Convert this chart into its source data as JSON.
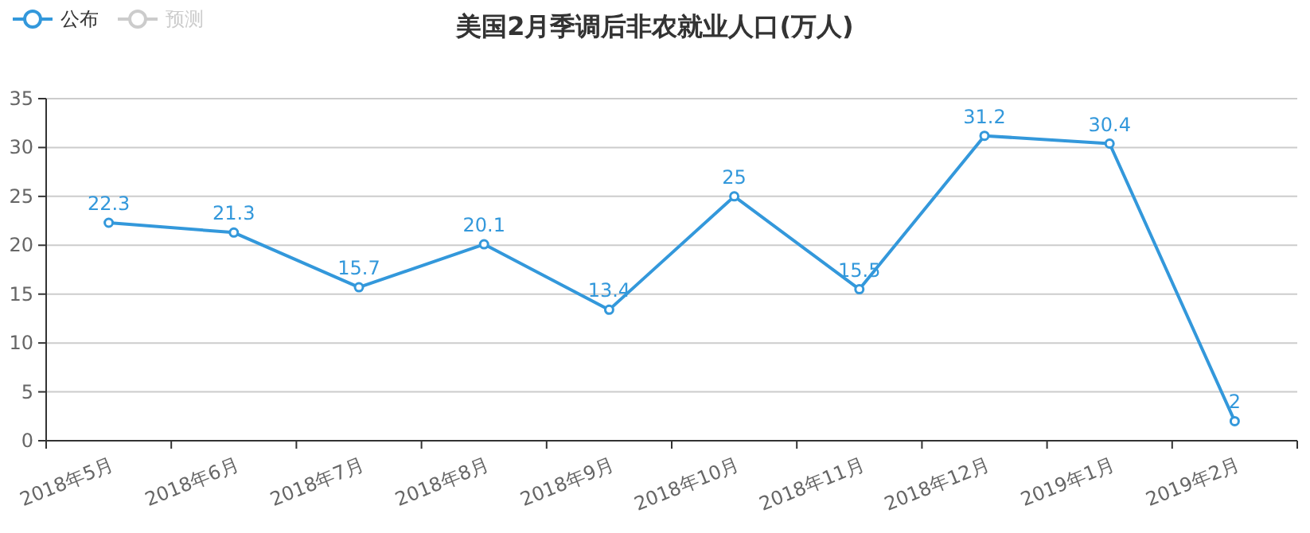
{
  "chart_data": {
    "type": "line",
    "title": "美国2月季调后非农就业人口(万人)",
    "categories": [
      "2018年5月",
      "2018年6月",
      "2018年7月",
      "2018年8月",
      "2018年9月",
      "2018年10月",
      "2018年11月",
      "2018年12月",
      "2019年1月",
      "2019年2月"
    ],
    "series": [
      {
        "name": "公布",
        "color": "#3398db",
        "values": [
          22.3,
          21.3,
          15.7,
          20.1,
          13.4,
          25,
          15.5,
          31.2,
          30.4,
          2
        ]
      },
      {
        "name": "预测",
        "color": "#cccccc",
        "values": [
          null,
          null,
          null,
          null,
          null,
          null,
          null,
          null,
          null,
          null
        ]
      }
    ],
    "ylim": [
      0,
      35
    ],
    "yticks": [
      0,
      5,
      10,
      15,
      20,
      25,
      30,
      35
    ],
    "grid": "y",
    "legend": "top left",
    "marker": "circle",
    "line_style": "solid",
    "data_labels": true
  }
}
